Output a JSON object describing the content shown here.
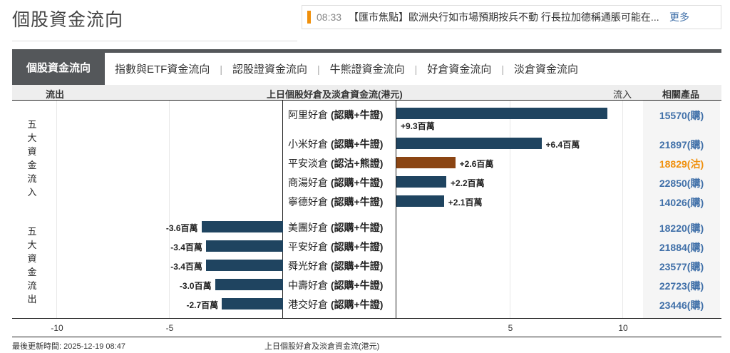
{
  "page": {
    "title": "個股資金流向"
  },
  "news": {
    "time": "08:33",
    "text": "【匯市焦點】歐洲央行如市場預期按兵不動 行長拉加德稱通脹可能在...",
    "more_label": "更多",
    "accent_color": "#f0900c"
  },
  "tabs": [
    {
      "label": "個股資金流向",
      "active": true
    },
    {
      "label": "指數與ETF資金流向",
      "active": false
    },
    {
      "label": "認股證資金流向",
      "active": false
    },
    {
      "label": "牛熊證資金流向",
      "active": false
    },
    {
      "label": "好倉資金流向",
      "active": false
    },
    {
      "label": "淡倉資金流向",
      "active": false
    }
  ],
  "tab_separator": "|",
  "table_header": {
    "outflow": "流出",
    "title": "上日個股好倉及淡倉資金流(港元)",
    "inflow": "流入",
    "products": "相關產品"
  },
  "side_labels": {
    "inflow": [
      "五",
      "大",
      "資",
      "金",
      "流",
      "入"
    ],
    "outflow": [
      "五",
      "大",
      "資",
      "金",
      "流",
      "出"
    ]
  },
  "footer": {
    "updated": "最後更新時間: 2025-12-19 08:47",
    "axis_title": "上日個股好倉及淡倉資金流(港元)"
  },
  "colors": {
    "long_bar": "#1f4460",
    "short_bar": "#8b4513",
    "product_link": "#3f6fa8",
    "product_put": "#f0900c"
  },
  "chart_data": {
    "type": "bar",
    "orientation": "horizontal",
    "title": "上日個股好倉及淡倉資金流(港元)",
    "xlabel": "上日個股好倉及淡倉資金流(港元)",
    "ylabel": "",
    "unit": "百萬",
    "xlim": [
      -10,
      10
    ],
    "xticks": [
      -10,
      -5,
      5,
      10
    ],
    "grid": true,
    "groups": [
      {
        "name": "五大資金流入",
        "rows": [
          0,
          1,
          2,
          3,
          4
        ]
      },
      {
        "name": "五大資金流出",
        "rows": [
          5,
          6,
          7,
          8,
          9
        ]
      }
    ],
    "categories": [
      "阿里好倉 (認購+牛證)",
      "小米好倉 (認購+牛證)",
      "平安淡倉 (認沽+熊證)",
      "商湯好倉 (認購+牛證)",
      "寧德好倉 (認購+牛證)",
      "美團好倉 (認購+牛證)",
      "平安好倉 (認購+牛證)",
      "舜光好倉 (認購+牛證)",
      "中壽好倉 (認購+牛證)",
      "港交好倉 (認購+牛證)"
    ],
    "values": [
      9.3,
      6.4,
      2.6,
      2.2,
      2.1,
      -3.6,
      -3.4,
      -3.4,
      -3.0,
      -2.7
    ],
    "value_labels": [
      "+9.3百萬",
      "+6.4百萬",
      "+2.6百萬",
      "+2.2百萬",
      "+2.1百萬",
      "-3.6百萬",
      "-3.4百萬",
      "-3.4百萬",
      "-3.0百萬",
      "-2.7百萬"
    ],
    "position_type": [
      "long",
      "long",
      "short",
      "long",
      "long",
      "long",
      "long",
      "long",
      "long",
      "long"
    ],
    "related_products": [
      "15570(購)",
      "21897(購)",
      "18829(沽)",
      "22850(購)",
      "14026(購)",
      "18220(購)",
      "21884(購)",
      "23577(購)",
      "22723(購)",
      "23446(購)"
    ]
  },
  "rows": [
    {
      "name": "阿里好倉",
      "suffix": "(認購+牛證)",
      "value": 9.3,
      "label": "+9.3百萬",
      "product": "15570(購)",
      "type": "long"
    },
    {
      "name": "小米好倉",
      "suffix": "(認購+牛證)",
      "value": 6.4,
      "label": "+6.4百萬",
      "product": "21897(購)",
      "type": "long"
    },
    {
      "name": "平安淡倉",
      "suffix": "(認沽+熊證)",
      "value": 2.6,
      "label": "+2.6百萬",
      "product": "18829(沽)",
      "type": "short"
    },
    {
      "name": "商湯好倉",
      "suffix": "(認購+牛證)",
      "value": 2.2,
      "label": "+2.2百萬",
      "product": "22850(購)",
      "type": "long"
    },
    {
      "name": "寧德好倉",
      "suffix": "(認購+牛證)",
      "value": 2.1,
      "label": "+2.1百萬",
      "product": "14026(購)",
      "type": "long"
    },
    {
      "name": "美團好倉",
      "suffix": "(認購+牛證)",
      "value": -3.6,
      "label": "-3.6百萬",
      "product": "18220(購)",
      "type": "long"
    },
    {
      "name": "平安好倉",
      "suffix": "(認購+牛證)",
      "value": -3.4,
      "label": "-3.4百萬",
      "product": "21884(購)",
      "type": "long"
    },
    {
      "name": "舜光好倉",
      "suffix": "(認購+牛證)",
      "value": -3.4,
      "label": "-3.4百萬",
      "product": "23577(購)",
      "type": "long"
    },
    {
      "name": "中壽好倉",
      "suffix": "(認購+牛證)",
      "value": -3.0,
      "label": "-3.0百萬",
      "product": "22723(購)",
      "type": "long"
    },
    {
      "name": "港交好倉",
      "suffix": "(認購+牛證)",
      "value": -2.7,
      "label": "-2.7百萬",
      "product": "23446(購)",
      "type": "long"
    }
  ]
}
